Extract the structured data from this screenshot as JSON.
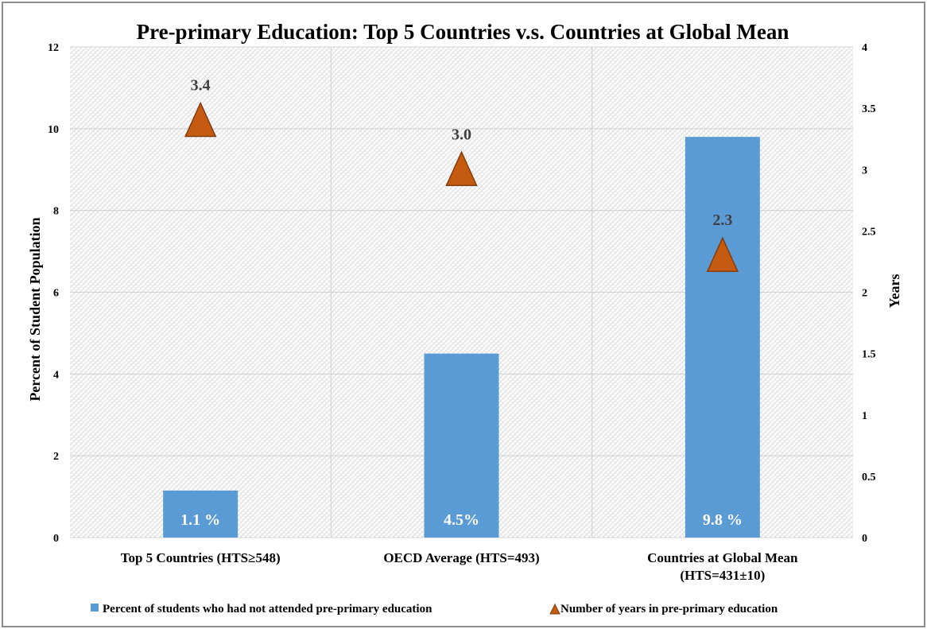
{
  "chart_data": {
    "type": "bar",
    "title": "Pre-primary  Education: Top 5 Countries v.s. Countries at Global Mean",
    "categories": [
      [
        "Top 5 Countries (HTS≥548)"
      ],
      [
        "OECD Average (HTS=493)"
      ],
      [
        "Countries at Global Mean",
        "(HTS=431±10)"
      ]
    ],
    "ylabel": "Percent of Student Population",
    "y2label": "Years",
    "ylim": [
      0,
      12
    ],
    "y_ticks": [
      "0",
      "2",
      "4",
      "6",
      "8",
      "10",
      "12"
    ],
    "y2lim": [
      0,
      4
    ],
    "y2_ticks": [
      "0",
      "0.5",
      "1",
      "1.5",
      "2",
      "2.5",
      "3",
      "3.5",
      "4"
    ],
    "grid": true,
    "legend_position": "bottom",
    "series": [
      {
        "name": "Percent of students who had not attended pre-primary education",
        "kind": "bar",
        "axis": "left",
        "color": "#5b9bd5",
        "values": [
          1.15,
          4.5,
          9.8
        ],
        "labels": [
          "1.1 %",
          "4.5%",
          "9.8 %"
        ]
      },
      {
        "name": "Number of years in pre-primary education",
        "kind": "marker-triangle",
        "axis": "right",
        "color": "#c55a11",
        "values": [
          3.4,
          3.0,
          2.3
        ],
        "labels": [
          "3.4",
          "3.0",
          "2.3"
        ]
      }
    ]
  }
}
